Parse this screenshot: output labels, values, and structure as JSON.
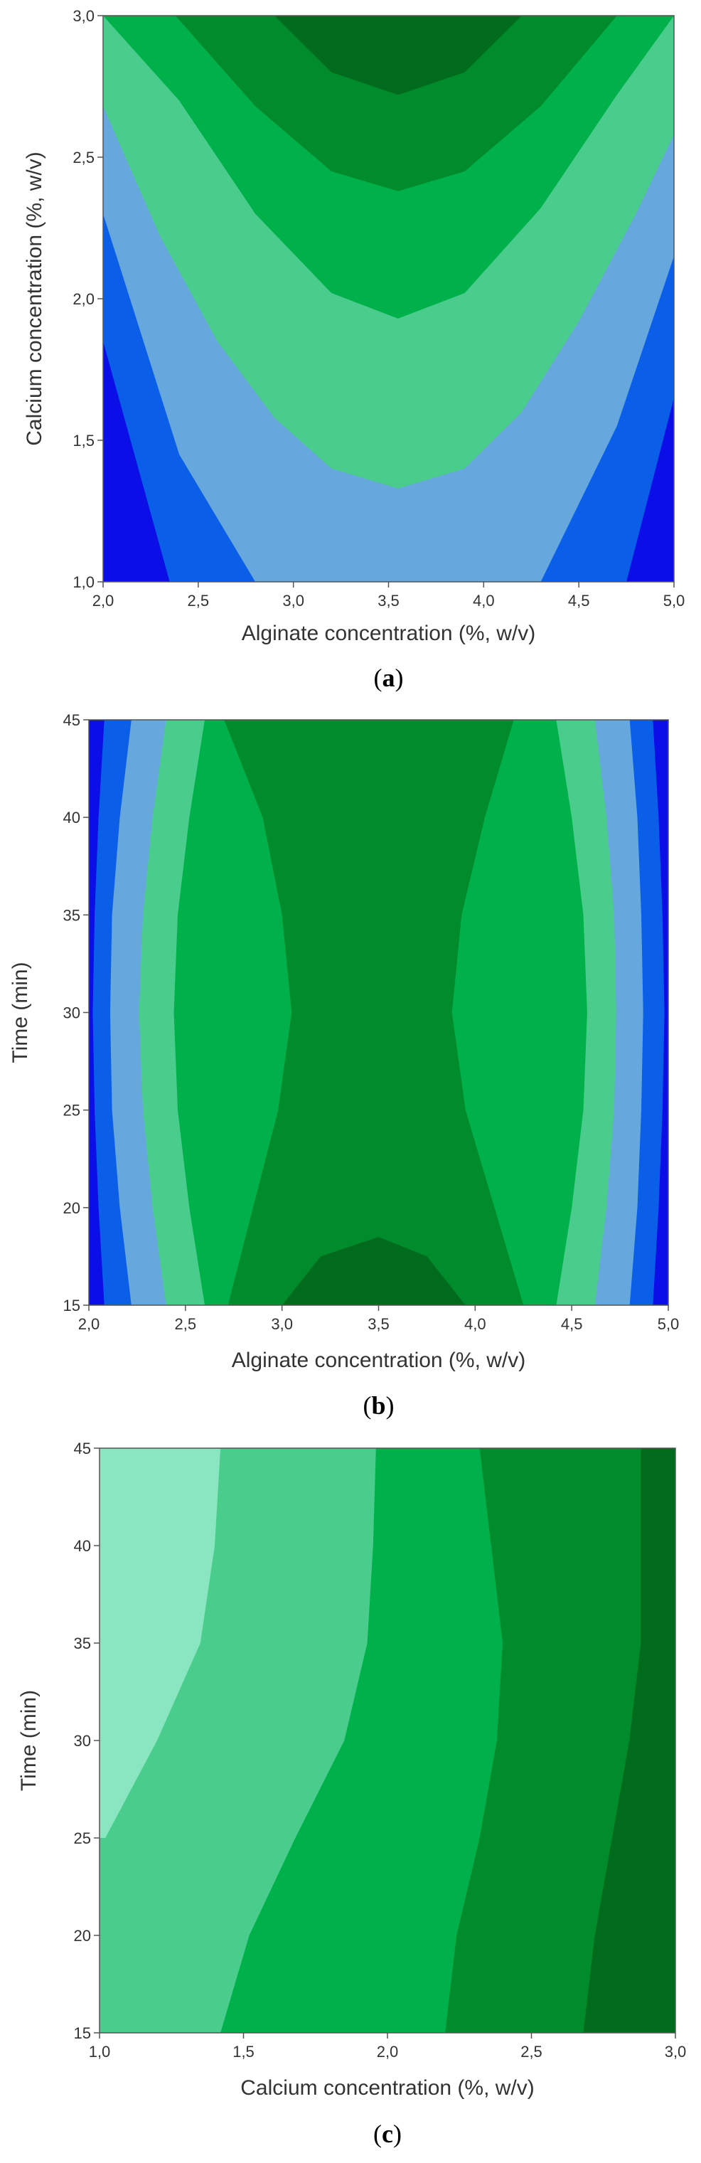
{
  "chart_data": [
    {
      "type": "contour",
      "panel_label": "a",
      "xlabel": "Alginate concentration (%, w/v)",
      "ylabel": "Calcium concentration (%, w/v)",
      "xlim": [
        2.0,
        5.0
      ],
      "ylim": [
        1.0,
        3.0
      ],
      "x_ticks": [
        "2,0",
        "2,5",
        "3,0",
        "3,5",
        "4,0",
        "4,5",
        "5,0"
      ],
      "y_ticks": [
        "1,0",
        "1,5",
        "2,0",
        "2,5",
        "3,0"
      ],
      "colors": [
        "#0b0ee6",
        "#0a5ee8",
        "#66a7dd",
        "#4acd8c",
        "#00b04b",
        "#008b2c",
        "#006b1d"
      ],
      "contour_boundaries": [
        {
          "x": [
            2.0,
            2.35,
            2.7,
            3.0,
            3.3,
            3.55,
            3.8,
            4.1,
            4.4,
            4.75,
            5.0
          ],
          "y": [
            1.85,
            1.0,
            null,
            null,
            null,
            null,
            null,
            null,
            null,
            1.0,
            1.65
          ]
        },
        {
          "x": [
            2.0,
            2.4,
            2.8,
            3.2,
            3.55,
            3.9,
            4.3,
            4.7,
            5.0
          ],
          "y": [
            2.3,
            1.45,
            1.0,
            null,
            null,
            null,
            1.0,
            1.55,
            2.15
          ]
        },
        {
          "x": [
            2.0,
            2.3,
            2.6,
            2.9,
            3.2,
            3.55,
            3.9,
            4.2,
            4.5,
            4.8,
            5.0
          ],
          "y": [
            2.68,
            2.22,
            1.85,
            1.58,
            1.4,
            1.33,
            1.4,
            1.6,
            1.92,
            2.3,
            2.58
          ]
        },
        {
          "x": [
            2.0,
            2.4,
            2.8,
            3.2,
            3.55,
            3.9,
            4.3,
            4.7,
            5.0
          ],
          "y": [
            3.0,
            2.7,
            2.3,
            2.02,
            1.93,
            2.02,
            2.32,
            2.72,
            3.0
          ]
        },
        {
          "x": [
            2.38,
            2.8,
            3.2,
            3.55,
            3.9,
            4.3,
            4.7
          ],
          "y": [
            3.0,
            2.68,
            2.45,
            2.38,
            2.45,
            2.68,
            3.0
          ]
        },
        {
          "x": [
            2.9,
            3.2,
            3.55,
            3.9,
            4.2
          ],
          "y": [
            3.0,
            2.8,
            2.72,
            2.8,
            3.0
          ]
        }
      ]
    },
    {
      "type": "contour",
      "panel_label": "b",
      "xlabel": "Alginate concentration (%, w/v)",
      "ylabel": "Time (min)",
      "xlim": [
        2.0,
        5.0
      ],
      "ylim": [
        15,
        45
      ],
      "x_ticks": [
        "2,0",
        "2,5",
        "3,0",
        "3,5",
        "4,0",
        "4,5",
        "5,0"
      ],
      "y_ticks": [
        "15",
        "20",
        "25",
        "30",
        "35",
        "40",
        "45"
      ],
      "colors": [
        "#0b0ee6",
        "#0a5ee8",
        "#66a7dd",
        "#4acd8c",
        "#00b04b",
        "#008b2c",
        "#006b1d"
      ],
      "left_boundaries": {
        "y": [
          15,
          20,
          25,
          30,
          35,
          40,
          45
        ],
        "x": [
          [
            2.0,
            2.0,
            2.0,
            2.0,
            2.0,
            2.0,
            2.0
          ],
          [
            2.08,
            2.05,
            2.03,
            2.02,
            2.03,
            2.05,
            2.08
          ],
          [
            2.22,
            2.16,
            2.12,
            2.11,
            2.12,
            2.16,
            2.22
          ],
          [
            2.4,
            2.33,
            2.28,
            2.26,
            2.28,
            2.33,
            2.4
          ],
          [
            2.6,
            2.52,
            2.46,
            2.44,
            2.46,
            2.52,
            2.6
          ],
          [
            2.72,
            2.85,
            2.98,
            3.05,
            3.0,
            2.9,
            2.7
          ]
        ]
      },
      "right_boundaries": {
        "y": [
          15,
          20,
          25,
          30,
          35,
          40,
          45
        ],
        "x": [
          [
            5.0,
            5.0,
            5.0,
            5.0,
            5.0,
            5.0,
            5.0
          ],
          [
            4.92,
            4.95,
            4.97,
            4.98,
            4.97,
            4.95,
            4.92
          ],
          [
            4.8,
            4.84,
            4.86,
            4.87,
            4.86,
            4.84,
            4.8
          ],
          [
            4.62,
            4.68,
            4.72,
            4.73,
            4.72,
            4.68,
            4.62
          ],
          [
            4.42,
            4.5,
            4.56,
            4.58,
            4.56,
            4.5,
            4.42
          ],
          [
            4.25,
            4.1,
            3.95,
            3.88,
            3.93,
            4.05,
            4.2
          ]
        ]
      },
      "dark_region": {
        "x": [
          3.0,
          3.2,
          3.5,
          3.75,
          3.95
        ],
        "y": [
          15,
          17.5,
          18.5,
          17.5,
          15
        ]
      }
    },
    {
      "type": "contour",
      "panel_label": "c",
      "xlabel": "Calcium concentration (%, w/v)",
      "ylabel": "Time (min)",
      "xlim": [
        1.0,
        3.0
      ],
      "ylim": [
        15,
        45
      ],
      "x_ticks": [
        "1,0",
        "1,5",
        "2,0",
        "2,5",
        "3,0"
      ],
      "y_ticks": [
        "15",
        "20",
        "25",
        "30",
        "35",
        "40",
        "45"
      ],
      "colors": [
        "#8ae6c0",
        "#4acd8c",
        "#00b04b",
        "#008b2c",
        "#006b1d"
      ],
      "contour_boundaries": {
        "y": [
          15,
          20,
          25,
          30,
          35,
          40,
          45
        ],
        "x": [
          [
            null,
            null,
            1.02,
            1.2,
            1.35,
            1.4,
            1.42
          ],
          [
            1.42,
            1.52,
            1.68,
            1.85,
            1.93,
            1.95,
            1.96
          ],
          [
            2.2,
            2.24,
            2.32,
            2.38,
            2.4,
            2.36,
            2.32
          ],
          [
            2.68,
            2.72,
            2.78,
            2.84,
            2.88,
            2.88,
            2.88
          ],
          [
            null,
            null,
            null,
            null,
            3.0,
            2.98,
            2.95
          ]
        ]
      }
    }
  ]
}
